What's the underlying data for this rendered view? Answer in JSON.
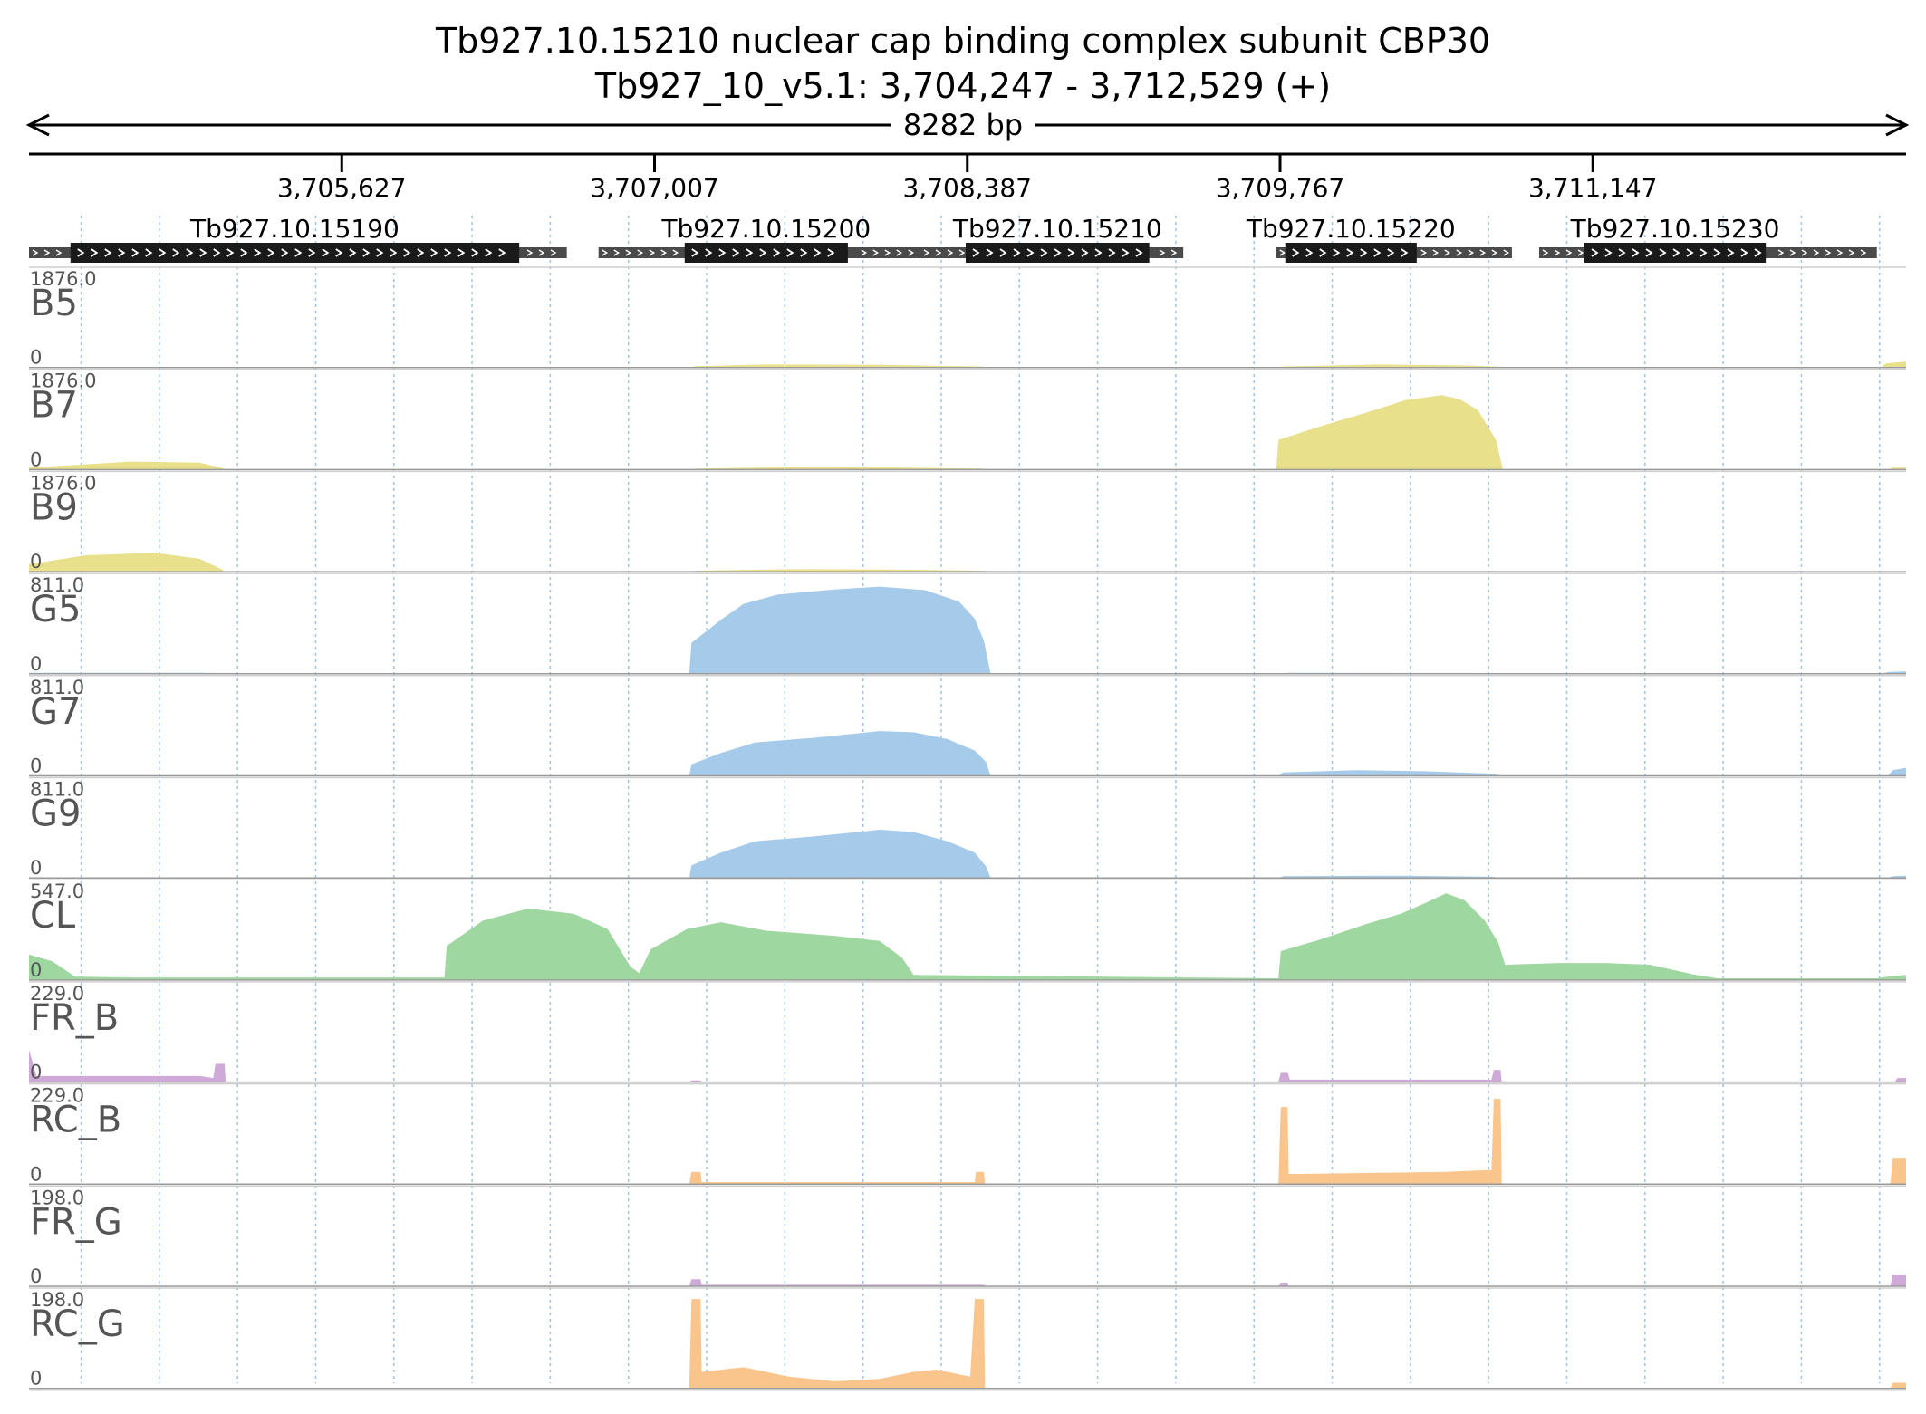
{
  "chart_data": {
    "type": "area",
    "title_line1": "Tb927.10.15210  nuclear cap binding complex subunit CBP30",
    "title_line2": "Tb927_10_v5.1: 3,704,247 - 3,712,529 (+)",
    "span_label": "8282 bp",
    "region": {
      "chrom": "Tb927_10_v5.1",
      "start": 3704247,
      "end": 3712529,
      "strand": "+"
    },
    "axis_ticks": [
      {
        "pos": 3705627,
        "label": "3,705,627"
      },
      {
        "pos": 3707007,
        "label": "3,707,007"
      },
      {
        "pos": 3708387,
        "label": "3,708,387"
      },
      {
        "pos": 3709767,
        "label": "3,709,767"
      },
      {
        "pos": 3711147,
        "label": "3,711,147"
      }
    ],
    "genes": [
      {
        "id": "Tb927.10.15190",
        "start": 3704247,
        "end": 3706620,
        "cds_start": 3704430,
        "cds_end": 3706410
      },
      {
        "id": "Tb927.10.15200",
        "start": 3706760,
        "end": 3708260,
        "cds_start": 3707140,
        "cds_end": 3707860
      },
      {
        "id": "Tb927.10.15210",
        "start": 3708180,
        "end": 3709340,
        "cds_start": 3708380,
        "cds_end": 3709190
      },
      {
        "id": "Tb927.10.15220",
        "start": 3709750,
        "end": 3710790,
        "cds_start": 3709790,
        "cds_end": 3710370
      },
      {
        "id": "Tb927.10.15230",
        "start": 3710910,
        "end": 3712400,
        "cds_start": 3711110,
        "cds_end": 3711910
      }
    ],
    "tracks": [
      {
        "name": "B5",
        "max": 1876.0,
        "max_label": "1876.0",
        "min_label": "0",
        "color": "#e8e08a",
        "points": [
          [
            3704247,
            0
          ],
          [
            3707160,
            0
          ],
          [
            3707190,
            25
          ],
          [
            3707500,
            60
          ],
          [
            3708000,
            55
          ],
          [
            3708450,
            20
          ],
          [
            3708480,
            0
          ],
          [
            3709750,
            0
          ],
          [
            3709780,
            20
          ],
          [
            3710200,
            60
          ],
          [
            3710600,
            40
          ],
          [
            3710740,
            15
          ],
          [
            3710760,
            0
          ],
          [
            3712420,
            0
          ],
          [
            3712440,
            80
          ],
          [
            3712529,
            120
          ]
        ]
      },
      {
        "name": "B7",
        "max": 1876.0,
        "max_label": "1876.0",
        "min_label": "0",
        "color": "#e8e08a",
        "points": [
          [
            3704247,
            40
          ],
          [
            3704700,
            160
          ],
          [
            3705000,
            140
          ],
          [
            3705100,
            30
          ],
          [
            3705110,
            0
          ],
          [
            3707160,
            0
          ],
          [
            3707190,
            20
          ],
          [
            3707600,
            50
          ],
          [
            3708000,
            45
          ],
          [
            3708450,
            20
          ],
          [
            3708480,
            0
          ],
          [
            3709750,
            0
          ],
          [
            3709760,
            600
          ],
          [
            3709950,
            880
          ],
          [
            3710150,
            1150
          ],
          [
            3710320,
            1400
          ],
          [
            3710480,
            1500
          ],
          [
            3710560,
            1420
          ],
          [
            3710640,
            1200
          ],
          [
            3710720,
            600
          ],
          [
            3710750,
            0
          ],
          [
            3712450,
            0
          ],
          [
            3712470,
            40
          ],
          [
            3712529,
            40
          ]
        ]
      },
      {
        "name": "B9",
        "max": 1876.0,
        "max_label": "1876.0",
        "min_label": "0",
        "color": "#e8e08a",
        "points": [
          [
            3704247,
            150
          ],
          [
            3704500,
            330
          ],
          [
            3704800,
            380
          ],
          [
            3705000,
            260
          ],
          [
            3705100,
            40
          ],
          [
            3705110,
            0
          ],
          [
            3707160,
            0
          ],
          [
            3707190,
            20
          ],
          [
            3707600,
            50
          ],
          [
            3708000,
            45
          ],
          [
            3708450,
            20
          ],
          [
            3708480,
            0
          ],
          [
            3712529,
            0
          ]
        ]
      },
      {
        "name": "G5",
        "max": 811.0,
        "max_label": "811.0",
        "min_label": "0",
        "color": "#a6cbea",
        "points": [
          [
            3704247,
            8
          ],
          [
            3705000,
            8
          ],
          [
            3705600,
            0
          ],
          [
            3707160,
            0
          ],
          [
            3707170,
            270
          ],
          [
            3707300,
            470
          ],
          [
            3707400,
            610
          ],
          [
            3707550,
            690
          ],
          [
            3707800,
            735
          ],
          [
            3708000,
            760
          ],
          [
            3708200,
            730
          ],
          [
            3708350,
            630
          ],
          [
            3708420,
            480
          ],
          [
            3708460,
            290
          ],
          [
            3708490,
            0
          ],
          [
            3709770,
            0
          ],
          [
            3709800,
            8
          ],
          [
            3710700,
            6
          ],
          [
            3712420,
            0
          ],
          [
            3712450,
            15
          ],
          [
            3712529,
            20
          ]
        ]
      },
      {
        "name": "G7",
        "max": 811.0,
        "max_label": "811.0",
        "min_label": "0",
        "color": "#a6cbea",
        "points": [
          [
            3704247,
            5
          ],
          [
            3705500,
            5
          ],
          [
            3705600,
            0
          ],
          [
            3707160,
            0
          ],
          [
            3707170,
            100
          ],
          [
            3707300,
            200
          ],
          [
            3707450,
            290
          ],
          [
            3707700,
            330
          ],
          [
            3708000,
            390
          ],
          [
            3708150,
            380
          ],
          [
            3708300,
            320
          ],
          [
            3708420,
            220
          ],
          [
            3708470,
            120
          ],
          [
            3708490,
            0
          ],
          [
            3709760,
            0
          ],
          [
            3709780,
            30
          ],
          [
            3710100,
            50
          ],
          [
            3710400,
            40
          ],
          [
            3710700,
            20
          ],
          [
            3710750,
            0
          ],
          [
            3712450,
            0
          ],
          [
            3712470,
            50
          ],
          [
            3712529,
            70
          ]
        ]
      },
      {
        "name": "G9",
        "max": 811.0,
        "max_label": "811.0",
        "min_label": "0",
        "color": "#a6cbea",
        "points": [
          [
            3704247,
            0
          ],
          [
            3707160,
            0
          ],
          [
            3707170,
            110
          ],
          [
            3707300,
            220
          ],
          [
            3707450,
            320
          ],
          [
            3707700,
            360
          ],
          [
            3708000,
            420
          ],
          [
            3708150,
            400
          ],
          [
            3708300,
            320
          ],
          [
            3708420,
            220
          ],
          [
            3708470,
            100
          ],
          [
            3708490,
            0
          ],
          [
            3709760,
            0
          ],
          [
            3709780,
            15
          ],
          [
            3710300,
            20
          ],
          [
            3710700,
            10
          ],
          [
            3710750,
            0
          ],
          [
            3712450,
            0
          ],
          [
            3712470,
            15
          ],
          [
            3712529,
            20
          ]
        ]
      },
      {
        "name": "CL",
        "max": 547.0,
        "max_label": "547.0",
        "min_label": "0",
        "color": "#9ed7a0",
        "points": [
          [
            3704247,
            150
          ],
          [
            3704350,
            110
          ],
          [
            3704450,
            20
          ],
          [
            3704700,
            15
          ],
          [
            3706080,
            15
          ],
          [
            3706090,
            200
          ],
          [
            3706250,
            350
          ],
          [
            3706450,
            420
          ],
          [
            3706650,
            390
          ],
          [
            3706800,
            300
          ],
          [
            3706900,
            80
          ],
          [
            3706940,
            40
          ],
          [
            3706990,
            180
          ],
          [
            3707150,
            300
          ],
          [
            3707300,
            340
          ],
          [
            3707500,
            290
          ],
          [
            3707800,
            260
          ],
          [
            3708000,
            230
          ],
          [
            3708100,
            130
          ],
          [
            3708150,
            30
          ],
          [
            3709760,
            10
          ],
          [
            3709770,
            170
          ],
          [
            3709950,
            240
          ],
          [
            3710150,
            330
          ],
          [
            3710300,
            390
          ],
          [
            3710420,
            460
          ],
          [
            3710500,
            510
          ],
          [
            3710580,
            470
          ],
          [
            3710670,
            350
          ],
          [
            3710730,
            220
          ],
          [
            3710760,
            90
          ],
          [
            3711000,
            100
          ],
          [
            3711200,
            100
          ],
          [
            3711400,
            90
          ],
          [
            3711600,
            30
          ],
          [
            3711700,
            10
          ],
          [
            3712400,
            10
          ],
          [
            3712450,
            20
          ],
          [
            3712529,
            30
          ]
        ]
      },
      {
        "name": "FR_B",
        "max": 229.0,
        "max_label": "229.0",
        "min_label": "0",
        "color": "#cfaad8",
        "points": [
          [
            3704247,
            80
          ],
          [
            3704280,
            15
          ],
          [
            3705000,
            15
          ],
          [
            3705060,
            10
          ],
          [
            3705070,
            45
          ],
          [
            3705110,
            45
          ],
          [
            3705115,
            0
          ],
          [
            3707160,
            0
          ],
          [
            3707170,
            4
          ],
          [
            3707210,
            4
          ],
          [
            3707215,
            0
          ],
          [
            3709760,
            0
          ],
          [
            3709770,
            25
          ],
          [
            3709800,
            25
          ],
          [
            3709810,
            6
          ],
          [
            3710700,
            6
          ],
          [
            3710710,
            30
          ],
          [
            3710740,
            30
          ],
          [
            3710745,
            0
          ],
          [
            3712480,
            0
          ],
          [
            3712490,
            10
          ],
          [
            3712529,
            10
          ]
        ]
      },
      {
        "name": "RC_B",
        "max": 229.0,
        "max_label": "229.0",
        "min_label": "0",
        "color": "#f9c58c",
        "points": [
          [
            3704247,
            0
          ],
          [
            3707160,
            0
          ],
          [
            3707170,
            30
          ],
          [
            3707210,
            30
          ],
          [
            3707215,
            5
          ],
          [
            3708420,
            5
          ],
          [
            3708425,
            30
          ],
          [
            3708460,
            30
          ],
          [
            3708465,
            0
          ],
          [
            3709760,
            0
          ],
          [
            3709770,
            190
          ],
          [
            3709800,
            190
          ],
          [
            3709805,
            25
          ],
          [
            3710500,
            30
          ],
          [
            3710700,
            35
          ],
          [
            3710710,
            210
          ],
          [
            3710740,
            210
          ],
          [
            3710745,
            0
          ],
          [
            3712460,
            0
          ],
          [
            3712470,
            65
          ],
          [
            3712529,
            65
          ]
        ]
      },
      {
        "name": "FR_G",
        "max": 198.0,
        "max_label": "198.0",
        "min_label": "0",
        "color": "#cfaad8",
        "points": [
          [
            3704247,
            0
          ],
          [
            3707160,
            0
          ],
          [
            3707170,
            15
          ],
          [
            3707210,
            15
          ],
          [
            3707215,
            3
          ],
          [
            3708460,
            3
          ],
          [
            3708465,
            0
          ],
          [
            3709760,
            0
          ],
          [
            3709770,
            8
          ],
          [
            3709800,
            8
          ],
          [
            3709805,
            0
          ],
          [
            3712460,
            0
          ],
          [
            3712470,
            25
          ],
          [
            3712529,
            25
          ]
        ]
      },
      {
        "name": "RC_G",
        "max": 198.0,
        "max_label": "198.0",
        "min_label": "0",
        "color": "#f9c58c",
        "points": [
          [
            3704247,
            0
          ],
          [
            3707160,
            0
          ],
          [
            3707170,
            190
          ],
          [
            3707210,
            190
          ],
          [
            3707215,
            35
          ],
          [
            3707400,
            45
          ],
          [
            3707600,
            25
          ],
          [
            3707800,
            15
          ],
          [
            3708000,
            20
          ],
          [
            3708150,
            35
          ],
          [
            3708250,
            40
          ],
          [
            3708400,
            25
          ],
          [
            3708420,
            190
          ],
          [
            3708460,
            190
          ],
          [
            3708465,
            0
          ],
          [
            3712460,
            0
          ],
          [
            3712470,
            12
          ],
          [
            3712529,
            12
          ]
        ]
      }
    ]
  }
}
